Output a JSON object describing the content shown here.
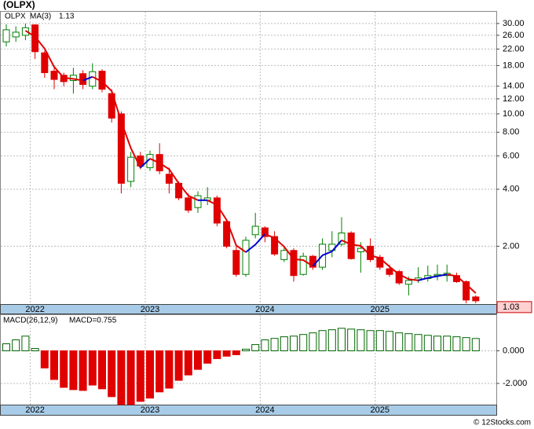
{
  "chart_data": [
    {
      "type": "candlestick",
      "title": "(OLPX)",
      "symbol": "OLPX",
      "categories": [
        null,
        null,
        null,
        "2022",
        null,
        null,
        null,
        null,
        null,
        null,
        null,
        null,
        null,
        null,
        null,
        "2023",
        null,
        null,
        null,
        null,
        null,
        null,
        null,
        null,
        null,
        null,
        null,
        "2024",
        null,
        null,
        null,
        null,
        null,
        null,
        null,
        null,
        null,
        null,
        null,
        "2025",
        null,
        null,
        null,
        null,
        null,
        null,
        null,
        null,
        null,
        null
      ],
      "open": [
        24,
        25.5,
        26,
        29.5,
        21,
        16.8,
        16,
        15,
        16.3,
        14,
        16.8,
        12.8,
        10,
        4.4,
        6,
        5.2,
        6.1,
        4.8,
        4.3,
        3.6,
        3.2,
        3.5,
        3.6,
        2.7,
        1.9,
        1.42,
        2.3,
        2.5,
        2.25,
        1.7,
        1.9,
        1.42,
        1.77,
        1.55,
        1.9,
        2.05,
        2.35,
        1.87,
        2.0,
        1.75,
        1.52,
        1.47,
        1.26,
        1.33,
        1.35,
        1.4,
        1.4,
        1.4,
        1.3,
        1.08
      ],
      "high": [
        29.7,
        29,
        30,
        29.7,
        21.5,
        17.5,
        16.5,
        17.5,
        17,
        18.5,
        17.2,
        13.5,
        10.3,
        6.3,
        6.3,
        6.4,
        7,
        5.2,
        4.4,
        3.8,
        3.9,
        4.1,
        3.7,
        2.75,
        2.0,
        2.25,
        3.0,
        2.55,
        2.4,
        2.0,
        1.95,
        1.85,
        1.8,
        2.2,
        2.4,
        2.85,
        2.4,
        2.1,
        2.2,
        1.8,
        1.6,
        1.5,
        1.38,
        1.55,
        1.58,
        1.6,
        1.6,
        1.45,
        1.32,
        1.1
      ],
      "low": [
        22.7,
        24,
        24.5,
        19.5,
        15.5,
        13.5,
        14,
        12.8,
        13.5,
        13.5,
        13,
        9,
        3.8,
        4.1,
        5.1,
        5,
        4.8,
        3.8,
        3.5,
        3.0,
        3.0,
        3.3,
        2.55,
        1.95,
        1.38,
        1.38,
        2.2,
        2.1,
        1.78,
        1.65,
        1.3,
        1.4,
        1.5,
        1.5,
        1.75,
        2.0,
        1.7,
        1.45,
        1.65,
        1.5,
        1.38,
        1.25,
        1.1,
        1.28,
        1.3,
        1.32,
        1.3,
        1.28,
        1.0,
        1.0
      ],
      "close": [
        27.8,
        27,
        28.5,
        21.3,
        16.5,
        15.2,
        14.8,
        16,
        14.3,
        16.7,
        13.5,
        9.5,
        4.3,
        5.9,
        5.3,
        6.1,
        5,
        4.3,
        3.6,
        3.1,
        3.7,
        3.6,
        2.65,
        2.0,
        1.42,
        2.15,
        2.55,
        2.25,
        1.82,
        1.9,
        1.4,
        1.77,
        1.55,
        2.05,
        2.05,
        2.35,
        1.72,
        1.95,
        1.7,
        1.55,
        1.42,
        1.28,
        1.32,
        1.36,
        1.4,
        1.42,
        1.44,
        1.3,
        1.04,
        1.03
      ],
      "up_color": "#008000",
      "down_color": "#e00000",
      "ma": {
        "name": "MA(3)",
        "last_value": 1.13,
        "up_color": "#0000cc",
        "down_color": "#e00000",
        "values": [
          null,
          null,
          27.5,
          25.6,
          22.1,
          17.7,
          15.5,
          15.3,
          15.0,
          15.7,
          14.8,
          13.2,
          9.1,
          6.6,
          5.2,
          5.8,
          5.5,
          5.1,
          4.3,
          3.7,
          3.5,
          3.5,
          3.3,
          2.75,
          2.02,
          1.86,
          2.04,
          2.32,
          2.21,
          1.99,
          1.71,
          1.69,
          1.57,
          1.79,
          1.88,
          2.15,
          2.04,
          2.01,
          1.79,
          1.73,
          1.56,
          1.42,
          1.34,
          1.32,
          1.36,
          1.39,
          1.42,
          1.39,
          1.26,
          1.13
        ]
      },
      "last_price": 1.03,
      "ylim": [
        0.99,
        34.6
      ],
      "log_scale": true,
      "grid": true,
      "yticks": [
        {
          "value": 30,
          "label": "30.00"
        },
        {
          "value": 26,
          "label": "26.00"
        },
        {
          "value": 22,
          "label": "22.00"
        },
        {
          "value": 18,
          "label": "18.00"
        },
        {
          "value": 14,
          "label": "14.00"
        },
        {
          "value": 12,
          "label": "12.00"
        },
        {
          "value": 10,
          "label": "10.00"
        },
        {
          "value": 8,
          "label": "8.00"
        },
        {
          "value": 6,
          "label": "6.00"
        },
        {
          "value": 4,
          "label": "4.00"
        },
        {
          "value": 2,
          "label": "2.00"
        }
      ]
    },
    {
      "type": "macd",
      "name": "MACD(26,12,9)",
      "label": "MACD=0.755",
      "categories": [
        null,
        null,
        null,
        "2022",
        null,
        null,
        null,
        null,
        null,
        null,
        null,
        null,
        null,
        null,
        null,
        "2023",
        null,
        null,
        null,
        null,
        null,
        null,
        null,
        null,
        null,
        null,
        null,
        "2024",
        null,
        null,
        null,
        null,
        null,
        null,
        null,
        null,
        null,
        null,
        null,
        "2025",
        null,
        null,
        null,
        null,
        null,
        null,
        null,
        null,
        null,
        null
      ],
      "values": [
        0.43,
        0.67,
        0.9,
        0.14,
        -1.05,
        -1.76,
        -2.24,
        -2.38,
        -2.43,
        -2.1,
        -2.33,
        -2.81,
        -3.29,
        -3.29,
        -3.1,
        -2.9,
        -2.52,
        -2.29,
        -1.81,
        -1.48,
        -1.14,
        -0.76,
        -0.48,
        -0.33,
        -0.24,
        0.1,
        0.38,
        0.67,
        0.76,
        0.86,
        0.9,
        1.0,
        1.1,
        1.24,
        1.29,
        1.38,
        1.33,
        1.29,
        1.24,
        1.24,
        1.19,
        1.1,
        1.05,
        1.0,
        0.95,
        0.9,
        0.9,
        0.86,
        0.81,
        0.755
      ],
      "up_color": "#006400",
      "down_color": "#e00000",
      "ylim": [
        -3.3,
        2.19
      ],
      "grid": true,
      "yticks": [
        {
          "value": 0,
          "label": "0.000"
        },
        {
          "value": -2,
          "label": "-2.000"
        }
      ]
    }
  ],
  "footer": "© 12Stocks.com"
}
